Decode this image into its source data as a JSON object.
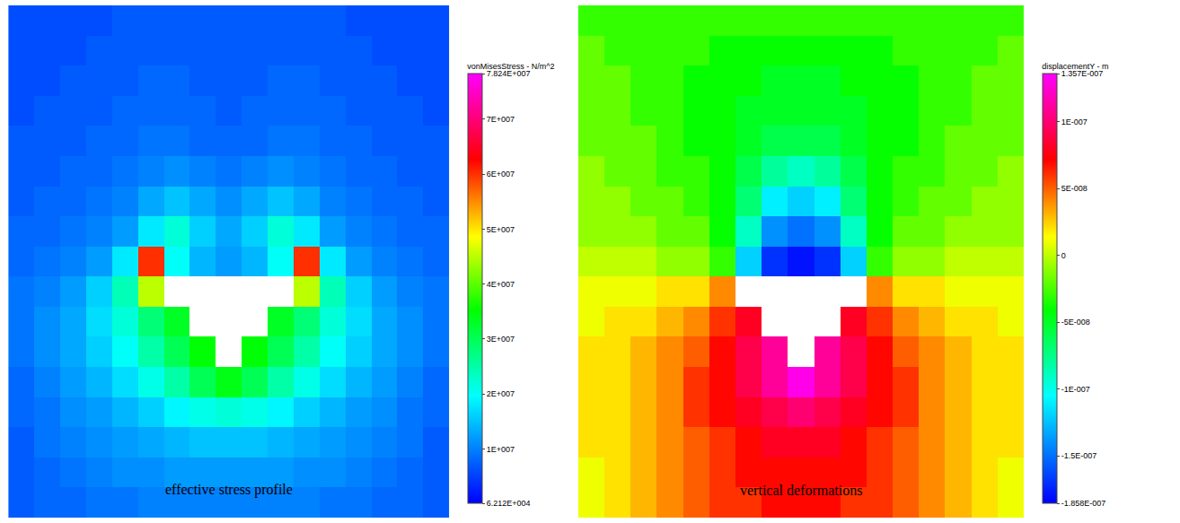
{
  "chart_data": [
    {
      "type": "heatmap",
      "title": "effective stress profile",
      "tick_labels": false,
      "colorbar": {
        "title": "vonMisesStress - N/m^2",
        "range": [
          62120.0,
          78240000.0
        ],
        "ticks": [
          {
            "value": 62120.0,
            "label": "6.212E+004"
          },
          {
            "value": 10000000.0,
            "label": "1E+007"
          },
          {
            "value": 20000000.0,
            "label": "2E+007"
          },
          {
            "value": 30000000.0,
            "label": "3E+007"
          },
          {
            "value": 40000000.0,
            "label": "4E+007"
          },
          {
            "value": 50000000.0,
            "label": "5E+007"
          },
          {
            "value": 60000000.0,
            "label": "6E+007"
          },
          {
            "value": 70000000.0,
            "label": "7E+007"
          },
          {
            "value": 78240000.0,
            "label": "7.824E+007"
          }
        ]
      },
      "cells": [
        [
          6000000.0,
          6000000.0,
          6000000.0,
          6000000.0,
          7000000.0,
          7000000.0,
          7000000.0,
          7000000.0,
          7000000.0,
          7000000.0,
          7000000.0,
          7000000.0,
          7000000.0,
          6000000.0,
          6000000.0,
          6000000.0,
          6000000.0
        ],
        [
          6000000.0,
          6000000.0,
          6000000.0,
          7000000.0,
          7000000.0,
          7000000.0,
          7000000.0,
          7000000.0,
          7000000.0,
          7000000.0,
          7000000.0,
          7000000.0,
          7000000.0,
          7000000.0,
          6000000.0,
          6000000.0,
          6000000.0
        ],
        [
          6000000.0,
          6000000.0,
          7000000.0,
          7000000.0,
          7000000.0,
          8000000.0,
          8000000.0,
          7000000.0,
          7000000.0,
          7000000.0,
          8000000.0,
          8000000.0,
          7000000.0,
          7000000.0,
          7000000.0,
          6000000.0,
          6000000.0
        ],
        [
          6000000.0,
          7000000.0,
          7000000.0,
          7000000.0,
          8000000.0,
          8000000.0,
          8000000.0,
          8000000.0,
          7000000.0,
          8000000.0,
          8000000.0,
          8000000.0,
          8000000.0,
          7000000.0,
          7000000.0,
          7000000.0,
          6000000.0
        ],
        [
          7000000.0,
          7000000.0,
          7000000.0,
          8000000.0,
          8000000.0,
          9000000.0,
          9000000.0,
          8000000.0,
          8000000.0,
          8000000.0,
          9000000.0,
          9000000.0,
          8000000.0,
          8000000.0,
          7000000.0,
          7000000.0,
          7000000.0
        ],
        [
          7000000.0,
          7000000.0,
          8000000.0,
          8000000.0,
          9000000.0,
          10000000.0,
          11000000.0,
          10000000.0,
          9000000.0,
          10000000.0,
          11000000.0,
          10000000.0,
          9000000.0,
          8000000.0,
          8000000.0,
          7000000.0,
          7000000.0
        ],
        [
          7000000.0,
          8000000.0,
          8000000.0,
          9000000.0,
          10000000.0,
          13000000.0,
          15000000.0,
          13000000.0,
          11000000.0,
          13000000.0,
          15000000.0,
          13000000.0,
          10000000.0,
          9000000.0,
          8000000.0,
          8000000.0,
          7000000.0
        ],
        [
          8000000.0,
          8000000.0,
          9000000.0,
          10000000.0,
          12000000.0,
          18000000.0,
          22000000.0,
          16000000.0,
          13000000.0,
          16000000.0,
          22000000.0,
          18000000.0,
          12000000.0,
          10000000.0,
          9000000.0,
          8000000.0,
          8000000.0
        ],
        [
          8000000.0,
          9000000.0,
          10000000.0,
          12000000.0,
          18000000.0,
          60000000.0,
          20000000.0,
          14000000.0,
          12000000.0,
          14000000.0,
          20000000.0,
          60000000.0,
          18000000.0,
          12000000.0,
          10000000.0,
          9000000.0,
          8000000.0
        ],
        [
          9000000.0,
          10000000.0,
          12000000.0,
          16000000.0,
          24000000.0,
          45000000.0,
          null,
          null,
          null,
          null,
          null,
          45000000.0,
          24000000.0,
          16000000.0,
          12000000.0,
          10000000.0,
          9000000.0
        ],
        [
          9000000.0,
          11000000.0,
          13000000.0,
          17000000.0,
          22000000.0,
          28000000.0,
          33000000.0,
          null,
          null,
          null,
          33000000.0,
          28000000.0,
          22000000.0,
          17000000.0,
          13000000.0,
          11000000.0,
          9000000.0
        ],
        [
          9000000.0,
          11000000.0,
          13000000.0,
          16000000.0,
          20000000.0,
          25000000.0,
          30000000.0,
          35000000.0,
          null,
          35000000.0,
          30000000.0,
          25000000.0,
          20000000.0,
          16000000.0,
          13000000.0,
          11000000.0,
          9000000.0
        ],
        [
          8000000.0,
          10000000.0,
          12000000.0,
          14000000.0,
          17000000.0,
          21000000.0,
          25000000.0,
          30000000.0,
          34000000.0,
          30000000.0,
          25000000.0,
          21000000.0,
          17000000.0,
          14000000.0,
          12000000.0,
          10000000.0,
          8000000.0
        ],
        [
          8000000.0,
          9000000.0,
          11000000.0,
          12000000.0,
          14000000.0,
          16000000.0,
          19000000.0,
          21000000.0,
          22000000.0,
          21000000.0,
          19000000.0,
          16000000.0,
          14000000.0,
          12000000.0,
          11000000.0,
          9000000.0,
          8000000.0
        ],
        [
          7000000.0,
          9000000.0,
          10000000.0,
          11000000.0,
          12000000.0,
          13000000.0,
          14000000.0,
          15000000.0,
          15000000.0,
          15000000.0,
          14000000.0,
          13000000.0,
          12000000.0,
          11000000.0,
          10000000.0,
          9000000.0,
          7000000.0
        ],
        [
          7000000.0,
          8000000.0,
          9000000.0,
          10000000.0,
          11000000.0,
          11000000.0,
          12000000.0,
          12000000.0,
          12000000.0,
          12000000.0,
          12000000.0,
          11000000.0,
          11000000.0,
          10000000.0,
          9000000.0,
          8000000.0,
          7000000.0
        ],
        [
          7000000.0,
          8000000.0,
          8000000.0,
          9000000.0,
          9000000.0,
          10000000.0,
          10000000.0,
          10000000.0,
          10000000.0,
          10000000.0,
          10000000.0,
          10000000.0,
          9000000.0,
          9000000.0,
          8000000.0,
          8000000.0,
          7000000.0
        ]
      ]
    },
    {
      "type": "heatmap",
      "title": "vertical deformations",
      "tick_labels": false,
      "colorbar": {
        "title": "displacementY - m",
        "range": [
          -1.858e-07,
          1.357e-07
        ],
        "ticks": [
          {
            "value": -1.858e-07,
            "label": "-1.858E-007"
          },
          {
            "value": -1.5e-07,
            "label": "-1.5E-007"
          },
          {
            "value": -1e-07,
            "label": "-1E-007"
          },
          {
            "value": -5e-08,
            "label": "-5E-008"
          },
          0,
          {
            "value": 5e-08,
            "label": "5E-008"
          },
          {
            "value": 1e-07,
            "label": "1E-007"
          },
          {
            "value": 1.357e-07,
            "label": "1.357E-007"
          }
        ]
      },
      "cells": [
        [
          -3e-08,
          -3e-08,
          -3e-08,
          -3e-08,
          -3e-08,
          -3e-08,
          -3e-08,
          -3e-08,
          -3e-08,
          -3e-08,
          -3e-08,
          -3e-08,
          -3e-08,
          -3e-08,
          -3e-08,
          -3e-08,
          -3e-08
        ],
        [
          -2e-08,
          -3e-08,
          -3e-08,
          -3e-08,
          -3e-08,
          -4e-08,
          -4e-08,
          -4e-08,
          -4e-08,
          -4e-08,
          -4e-08,
          -4e-08,
          -3e-08,
          -3e-08,
          -3e-08,
          -3e-08,
          -2e-08
        ],
        [
          -2e-08,
          -2e-08,
          -3e-08,
          -3e-08,
          -4e-08,
          -4e-08,
          -4e-08,
          -5e-08,
          -5e-08,
          -5e-08,
          -4e-08,
          -4e-08,
          -4e-08,
          -3e-08,
          -3e-08,
          -2e-08,
          -2e-08
        ],
        [
          -2e-08,
          -2e-08,
          -3e-08,
          -3e-08,
          -4e-08,
          -4e-08,
          -5e-08,
          -5e-08,
          -5e-08,
          -5e-08,
          -5e-08,
          -4e-08,
          -4e-08,
          -3e-08,
          -3e-08,
          -2e-08,
          -2e-08
        ],
        [
          -2e-08,
          -2e-08,
          -2e-08,
          -3e-08,
          -4e-08,
          -4e-08,
          -5e-08,
          -6e-08,
          -6e-08,
          -6e-08,
          -5e-08,
          -4e-08,
          -4e-08,
          -3e-08,
          -2e-08,
          -2e-08,
          -2e-08
        ],
        [
          -1e-08,
          -2e-08,
          -2e-08,
          -3e-08,
          -3e-08,
          -4e-08,
          -6e-08,
          -8e-08,
          -9e-08,
          -8e-08,
          -6e-08,
          -4e-08,
          -3e-08,
          -3e-08,
          -2e-08,
          -2e-08,
          -1e-08
        ],
        [
          -1e-08,
          -1e-08,
          -2e-08,
          -2e-08,
          -3e-08,
          -4e-08,
          -7e-08,
          -1.1e-07,
          -1.2e-07,
          -1.1e-07,
          -7e-08,
          -4e-08,
          -3e-08,
          -2e-08,
          -2e-08,
          -1e-08,
          -1e-08
        ],
        [
          -1e-08,
          -1e-08,
          -1e-08,
          -2e-08,
          -2e-08,
          -4e-08,
          -9e-08,
          -1.4e-07,
          -1.5e-07,
          -1.4e-07,
          -9e-08,
          -4e-08,
          -2e-08,
          -2e-08,
          -1e-08,
          -1e-08,
          -1e-08
        ],
        [
          0,
          0,
          0,
          -1e-08,
          -1e-08,
          -3e-08,
          -1.2e-07,
          -1.7e-07,
          -1.8e-07,
          -1.7e-07,
          -1.2e-07,
          -3e-08,
          -1e-08,
          -1e-08,
          0,
          0,
          0
        ],
        [
          1e-08,
          1e-08,
          1e-08,
          2e-08,
          2e-08,
          4e-08,
          null,
          null,
          null,
          null,
          null,
          4e-08,
          2e-08,
          2e-08,
          1e-08,
          1e-08,
          1e-08
        ],
        [
          1e-08,
          2e-08,
          2e-08,
          3e-08,
          4e-08,
          6e-08,
          8e-08,
          null,
          null,
          null,
          8e-08,
          6e-08,
          4e-08,
          3e-08,
          2e-08,
          2e-08,
          1e-08
        ],
        [
          2e-08,
          2e-08,
          3e-08,
          4e-08,
          5e-08,
          7e-08,
          9e-08,
          1.1e-07,
          null,
          1.1e-07,
          9e-08,
          7e-08,
          5e-08,
          4e-08,
          3e-08,
          2e-08,
          2e-08
        ],
        [
          2e-08,
          2e-08,
          3e-08,
          4e-08,
          6e-08,
          7e-08,
          9e-08,
          1.1e-07,
          1.3e-07,
          1.1e-07,
          9e-08,
          7e-08,
          6e-08,
          4e-08,
          3e-08,
          2e-08,
          2e-08
        ],
        [
          2e-08,
          2e-08,
          3e-08,
          4e-08,
          6e-08,
          7e-08,
          8e-08,
          9e-08,
          1e-07,
          9e-08,
          8e-08,
          7e-08,
          6e-08,
          4e-08,
          3e-08,
          2e-08,
          2e-08
        ],
        [
          2e-08,
          2e-08,
          3e-08,
          4e-08,
          5e-08,
          6e-08,
          7e-08,
          8e-08,
          8e-08,
          8e-08,
          7e-08,
          6e-08,
          5e-08,
          4e-08,
          3e-08,
          2e-08,
          2e-08
        ],
        [
          1e-08,
          2e-08,
          3e-08,
          4e-08,
          5e-08,
          6e-08,
          7e-08,
          7e-08,
          7e-08,
          7e-08,
          7e-08,
          6e-08,
          5e-08,
          4e-08,
          3e-08,
          2e-08,
          1e-08
        ],
        [
          1e-08,
          2e-08,
          3e-08,
          4e-08,
          5e-08,
          6e-08,
          6e-08,
          7e-08,
          7e-08,
          7e-08,
          6e-08,
          6e-08,
          5e-08,
          4e-08,
          3e-08,
          2e-08,
          1e-08
        ]
      ]
    }
  ]
}
